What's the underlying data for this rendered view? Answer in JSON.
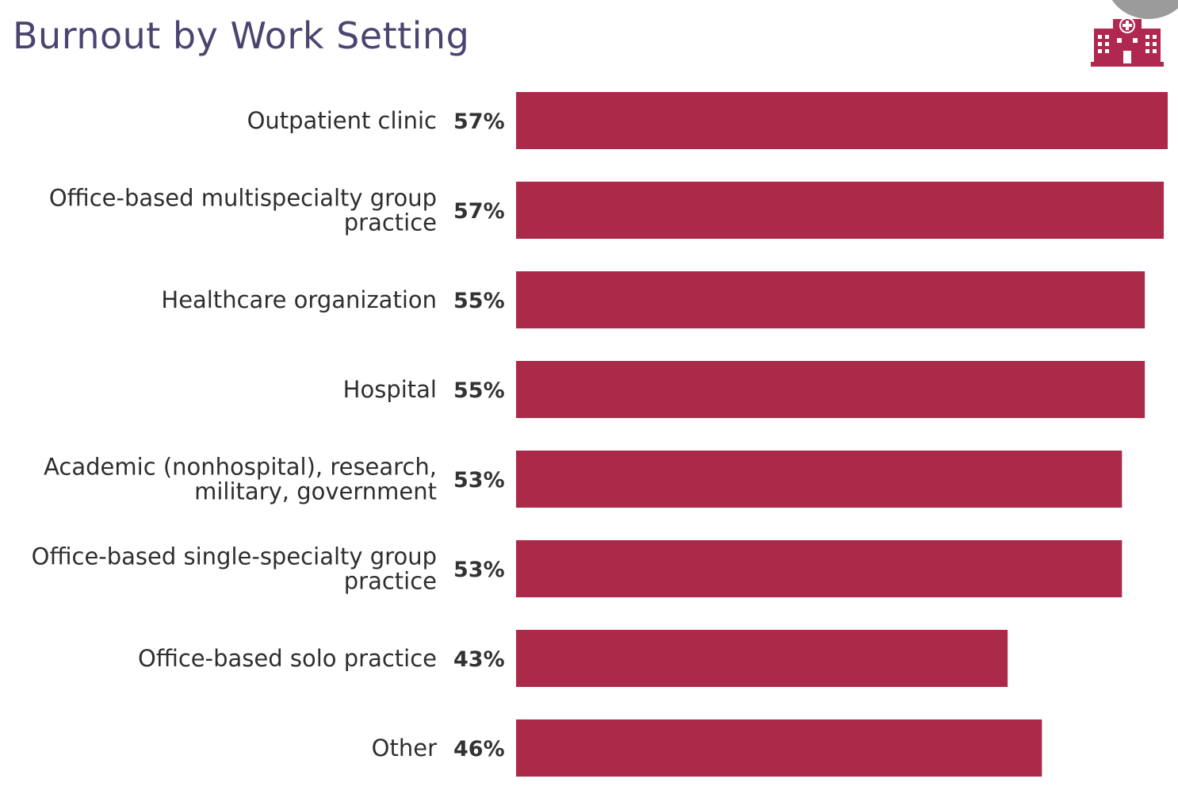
{
  "header": {
    "title": "Burnout by Work Setting",
    "icon": "hospital-icon"
  },
  "colors": {
    "bar": "#ab2a4a",
    "title": "#4a4570",
    "icon": "#b02850"
  },
  "chart_data": {
    "type": "bar",
    "orientation": "horizontal",
    "title": "Burnout by Work Setting",
    "categories": [
      [
        "Outpatient clinic"
      ],
      [
        "Office-based multispecialty group",
        "practice"
      ],
      [
        "Healthcare organization"
      ],
      [
        "Hospital"
      ],
      [
        "Academic (nonhospital), research,",
        "military, government"
      ],
      [
        "Office-based single-specialty group",
        "practice"
      ],
      [
        "Office-based solo practice"
      ],
      [
        "Other"
      ]
    ],
    "values": [
      57,
      57,
      55,
      55,
      53,
      53,
      43,
      46
    ],
    "value_labels": [
      "57%",
      "57%",
      "55%",
      "55%",
      "53%",
      "53%",
      "43%",
      "46%"
    ],
    "xlabel": "",
    "ylabel": "",
    "unit": "%",
    "xlim": [
      0,
      57
    ],
    "grid": false,
    "legend": "none"
  }
}
